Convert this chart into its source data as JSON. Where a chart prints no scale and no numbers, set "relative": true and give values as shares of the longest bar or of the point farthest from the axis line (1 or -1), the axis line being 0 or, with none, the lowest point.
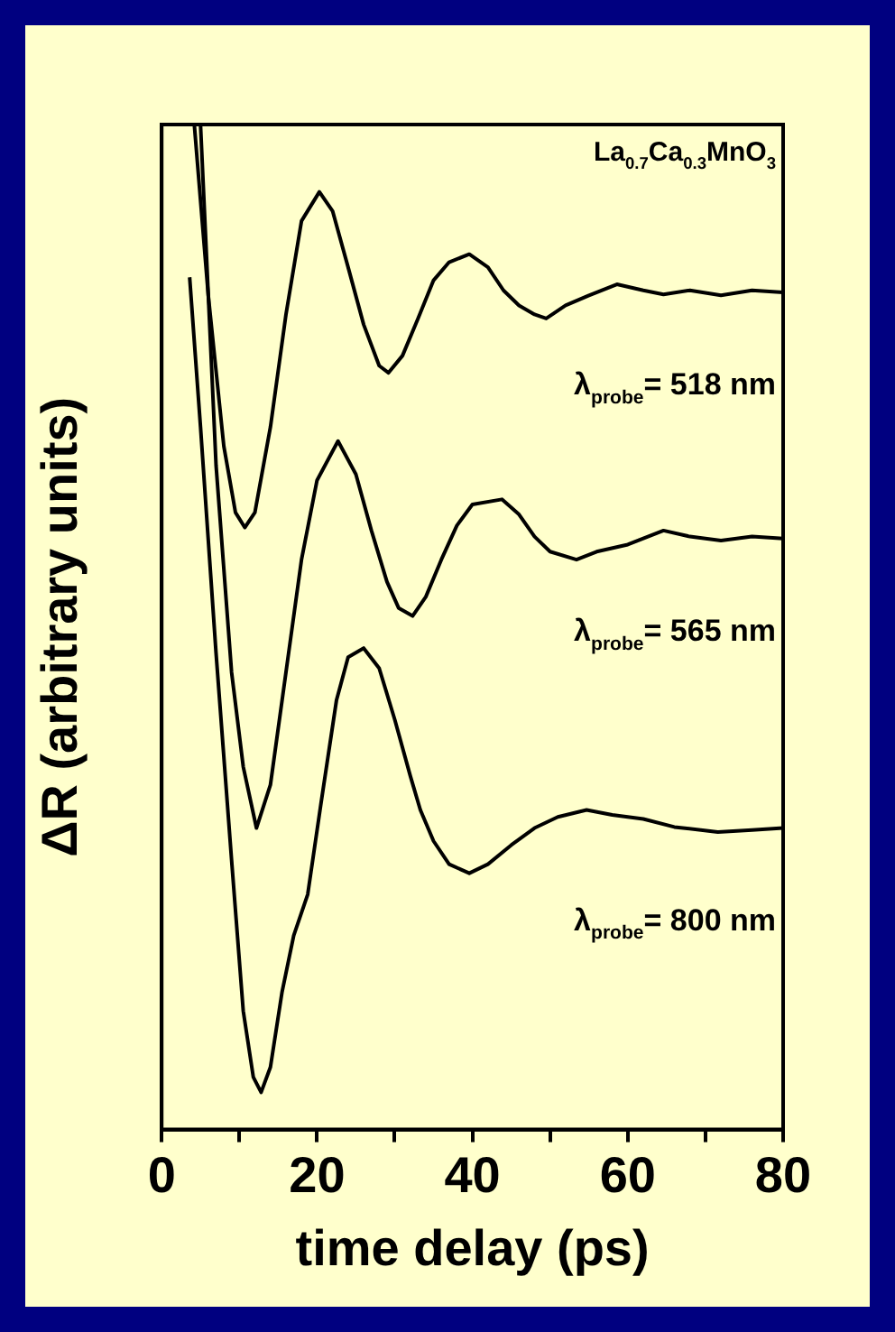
{
  "chart_data": {
    "type": "line",
    "relative": true,
    "xlabel": "time delay (ps)",
    "ylabel": "ΔR (arbitrary units)",
    "xlim": [
      0,
      80
    ],
    "xticks": [
      0,
      {
        "value": 10,
        "label": null
      },
      20,
      {
        "value": 30,
        "label": null
      },
      40,
      {
        "value": 50,
        "label": null
      },
      60,
      {
        "value": 70,
        "label": null
      },
      80
    ],
    "grid": false,
    "legend": false,
    "marker": "none",
    "line_style": "solid",
    "annotations": [
      "La$_{0.7}$Ca$_{0.3}$MnO$_{3}$"
    ],
    "series": [
      {
        "name": "λ$_{probe}$= 518 nm",
        "color": "#000000",
        "x": [
          4.2,
          6,
          8,
          9.5,
          10.7,
          12,
          14,
          16,
          18,
          20.3,
          22,
          24,
          26,
          28,
          29.2,
          31,
          33,
          35,
          37,
          39.6,
          42,
          44,
          46,
          48,
          49.5,
          52,
          55,
          58.6,
          62,
          64.6,
          68,
          72,
          76,
          80
        ],
        "values": [
          1.0,
          0.83,
          0.68,
          0.614,
          0.599,
          0.614,
          0.699,
          0.811,
          0.904,
          0.933,
          0.914,
          0.858,
          0.801,
          0.76,
          0.753,
          0.77,
          0.807,
          0.845,
          0.863,
          0.871,
          0.858,
          0.835,
          0.82,
          0.811,
          0.807,
          0.82,
          0.83,
          0.841,
          0.835,
          0.831,
          0.835,
          0.83,
          0.835,
          0.833
        ]
      },
      {
        "name": "λ$_{probe}$= 565 nm",
        "color": "#000000",
        "x": [
          5,
          7,
          9,
          10.5,
          12.2,
          14,
          16,
          18,
          20,
          22.7,
          25,
          27,
          29,
          30.5,
          32.3,
          34,
          36,
          38,
          40,
          43.8,
          46,
          48,
          50,
          53.4,
          56,
          60,
          64.6,
          68,
          72,
          76,
          80
        ],
        "values": [
          1.0,
          0.661,
          0.455,
          0.361,
          0.3,
          0.343,
          0.455,
          0.567,
          0.646,
          0.685,
          0.652,
          0.596,
          0.545,
          0.519,
          0.511,
          0.53,
          0.567,
          0.601,
          0.622,
          0.627,
          0.612,
          0.59,
          0.575,
          0.567,
          0.575,
          0.582,
          0.596,
          0.59,
          0.586,
          0.59,
          0.588
        ]
      },
      {
        "name": "λ$_{probe}$= 800 nm",
        "color": "#000000",
        "x": [
          3.6,
          5,
          7,
          9,
          10.5,
          11.8,
          12.8,
          14,
          15.5,
          17,
          18.8,
          20.5,
          22.5,
          24,
          26,
          28,
          30,
          32,
          33.3,
          35,
          37,
          39.6,
          42,
          45,
          48,
          51,
          54.7,
          58,
          62,
          66,
          71.6,
          76,
          80
        ],
        "values": [
          0.848,
          0.699,
          0.474,
          0.268,
          0.118,
          0.052,
          0.037,
          0.062,
          0.137,
          0.193,
          0.234,
          0.324,
          0.427,
          0.47,
          0.479,
          0.459,
          0.408,
          0.352,
          0.318,
          0.287,
          0.264,
          0.255,
          0.264,
          0.283,
          0.3,
          0.311,
          0.318,
          0.313,
          0.309,
          0.301,
          0.296,
          0.298,
          0.3
        ]
      }
    ]
  }
}
